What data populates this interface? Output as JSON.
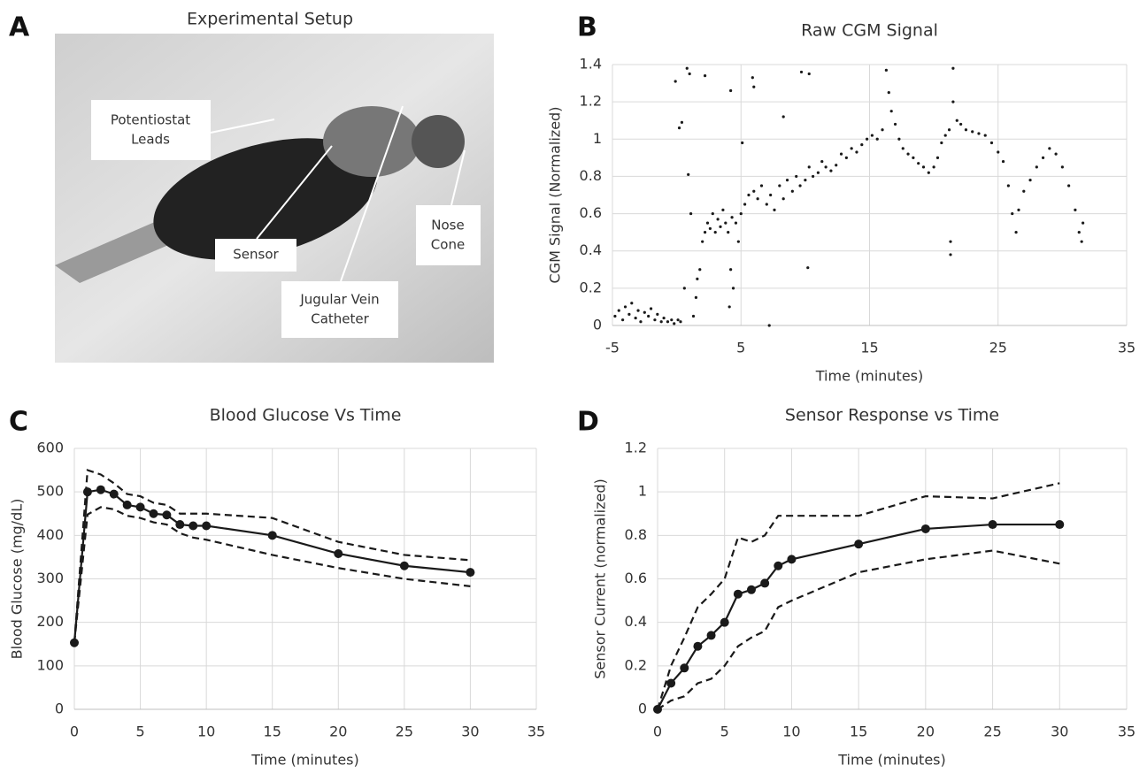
{
  "photo": {
    "panel": "A",
    "title": "Experimental Setup",
    "labels": [
      {
        "lines": [
          "Potentiostat",
          "Leads"
        ]
      },
      {
        "lines": [
          "Sensor"
        ]
      },
      {
        "lines": [
          "Jugular Vein",
          "Catheter"
        ]
      },
      {
        "lines": [
          "Nose",
          "Cone"
        ]
      }
    ]
  },
  "chart_data": [
    {
      "type": "scatter",
      "panel": "B",
      "title": "Raw CGM Signal",
      "xlabel": "Time (minutes)",
      "ylabel": "CGM Signal (Normalized)",
      "color": "#1a1a1a",
      "grid": true,
      "xlim": [
        -5,
        35
      ],
      "xticks": [
        -5,
        5,
        15,
        25,
        35
      ],
      "ylim": [
        0,
        1.4
      ],
      "yticks": [
        0,
        0.2,
        0.4,
        0.6,
        0.8,
        1,
        1.2,
        1.4
      ],
      "x": [
        -4.8,
        -4.5,
        -4.2,
        -4,
        -3.7,
        -3.5,
        -3.2,
        -3,
        -2.8,
        -2.5,
        -2.2,
        -2,
        -1.7,
        -1.5,
        -1.2,
        -1,
        -0.7,
        -0.4,
        -0.2,
        0.1,
        0.3,
        -0.1,
        0.2,
        0.4,
        0.6,
        0.8,
        1,
        1.1,
        0.9,
        1.3,
        1.5,
        2.2,
        4.2,
        5.9,
        6,
        8.3,
        9.7,
        10.3,
        4.1,
        4.2,
        4.4,
        7.2,
        5.1,
        10.2,
        21.3,
        21.3,
        21.5,
        1.6,
        1.8,
        2,
        2.2,
        2.4,
        2.6,
        2.8,
        3,
        3.2,
        3.4,
        3.6,
        3.8,
        4,
        4.3,
        4.6,
        4.8,
        5,
        5.3,
        5.6,
        6,
        6.3,
        6.6,
        7,
        7.3,
        7.6,
        8,
        8.3,
        8.6,
        9,
        9.3,
        9.6,
        10,
        10.3,
        10.6,
        11,
        11.3,
        11.6,
        12,
        12.4,
        12.8,
        13.2,
        13.6,
        14,
        14.4,
        14.8,
        15.2,
        15.6,
        16,
        16.3,
        16.5,
        16.7,
        17,
        17.3,
        17.6,
        18,
        18.4,
        18.8,
        19.2,
        19.6,
        20,
        20.3,
        20.6,
        20.9,
        21.2,
        21.5,
        21.8,
        22.1,
        22.5,
        23,
        23.5,
        24,
        24.5,
        25,
        25.4,
        25.8,
        26.1,
        26.4,
        26.6,
        27,
        27.5,
        28,
        28.5,
        29,
        29.5,
        30,
        30.5,
        31,
        31.3,
        31.5,
        31.6
      ],
      "values": [
        0.05,
        0.08,
        0.03,
        0.1,
        0.06,
        0.12,
        0.04,
        0.08,
        0.02,
        0.07,
        0.05,
        0.09,
        0.03,
        0.06,
        0.02,
        0.04,
        0.02,
        0.03,
        0.01,
        0.03,
        0.02,
        1.31,
        1.06,
        1.09,
        0.2,
        1.38,
        1.35,
        0.6,
        0.81,
        0.05,
        0.15,
        1.34,
        1.26,
        1.33,
        1.28,
        1.12,
        1.36,
        1.35,
        0.1,
        0.3,
        0.2,
        0,
        0.98,
        0.31,
        0.45,
        0.38,
        1.38,
        0.25,
        0.3,
        0.45,
        0.5,
        0.55,
        0.52,
        0.6,
        0.5,
        0.57,
        0.53,
        0.62,
        0.55,
        0.5,
        0.58,
        0.55,
        0.45,
        0.6,
        0.65,
        0.7,
        0.72,
        0.68,
        0.75,
        0.65,
        0.7,
        0.62,
        0.75,
        0.68,
        0.78,
        0.72,
        0.8,
        0.75,
        0.78,
        0.85,
        0.8,
        0.82,
        0.88,
        0.85,
        0.83,
        0.86,
        0.92,
        0.9,
        0.95,
        0.93,
        0.97,
        1,
        1.02,
        1,
        1.05,
        1.37,
        1.25,
        1.15,
        1.08,
        1,
        0.95,
        0.92,
        0.9,
        0.87,
        0.85,
        0.82,
        0.85,
        0.9,
        0.98,
        1.02,
        1.05,
        1.2,
        1.1,
        1.08,
        1.05,
        1.04,
        1.03,
        1.02,
        0.98,
        0.93,
        0.88,
        0.75,
        0.6,
        0.5,
        0.62,
        0.72,
        0.78,
        0.85,
        0.9,
        0.95,
        0.92,
        0.85,
        0.75,
        0.62,
        0.5,
        0.45,
        0.55
      ]
    },
    {
      "type": "line",
      "panel": "C",
      "title": "Blood Glucose Vs Time",
      "xlabel": "Time (minutes)",
      "ylabel": "Blood Glucose (mg/dL)",
      "grid": true,
      "xlim": [
        0,
        35
      ],
      "xticks": [
        0,
        5,
        10,
        15,
        20,
        25,
        30,
        35
      ],
      "ylim": [
        0,
        600
      ],
      "yticks": [
        0,
        100,
        200,
        300,
        400,
        500,
        600
      ],
      "x": [
        0,
        1,
        2,
        3,
        4,
        5,
        6,
        7,
        8,
        9,
        10,
        15,
        20,
        25,
        30
      ],
      "series": [
        {
          "color": "#1a1a1a",
          "markers": true,
          "dashed": false,
          "values": [
            153,
            500,
            505,
            495,
            470,
            465,
            450,
            447,
            425,
            422,
            422,
            400,
            358,
            330,
            315
          ]
        },
        {
          "color": "#1a1a1a",
          "markers": false,
          "dashed": true,
          "values": [
            153,
            550,
            540,
            520,
            495,
            490,
            475,
            470,
            450,
            450,
            450,
            440,
            385,
            355,
            343
          ]
        },
        {
          "color": "#1a1a1a",
          "markers": false,
          "dashed": true,
          "values": [
            153,
            448,
            465,
            460,
            445,
            440,
            430,
            425,
            405,
            395,
            390,
            355,
            325,
            300,
            283
          ]
        }
      ]
    },
    {
      "type": "line",
      "panel": "D",
      "title": "Sensor Response vs Time",
      "xlabel": "Time (minutes)",
      "ylabel": "Sensor Current (normalized)",
      "grid": true,
      "xlim": [
        0,
        35
      ],
      "xticks": [
        0,
        5,
        10,
        15,
        20,
        25,
        30,
        35
      ],
      "ylim": [
        0,
        1.2
      ],
      "yticks": [
        0,
        0.2,
        0.4,
        0.6,
        0.8,
        1,
        1.2
      ],
      "x": [
        0,
        1,
        2,
        3,
        4,
        5,
        6,
        7,
        8,
        9,
        10,
        15,
        20,
        25,
        30
      ],
      "series": [
        {
          "color": "#1a1a1a",
          "markers": true,
          "dashed": false,
          "values": [
            0,
            0.12,
            0.19,
            0.29,
            0.34,
            0.4,
            0.53,
            0.55,
            0.58,
            0.66,
            0.69,
            0.76,
            0.83,
            0.85,
            0.85
          ]
        },
        {
          "color": "#1a1a1a",
          "markers": false,
          "dashed": true,
          "values": [
            0,
            0.2,
            0.33,
            0.47,
            0.53,
            0.6,
            0.79,
            0.77,
            0.8,
            0.89,
            0.89,
            0.89,
            0.98,
            0.97,
            1.04
          ]
        },
        {
          "color": "#1a1a1a",
          "markers": false,
          "dashed": true,
          "values": [
            0,
            0.04,
            0.06,
            0.12,
            0.14,
            0.2,
            0.29,
            0.33,
            0.36,
            0.47,
            0.5,
            0.63,
            0.69,
            0.73,
            0.67
          ]
        }
      ]
    }
  ]
}
